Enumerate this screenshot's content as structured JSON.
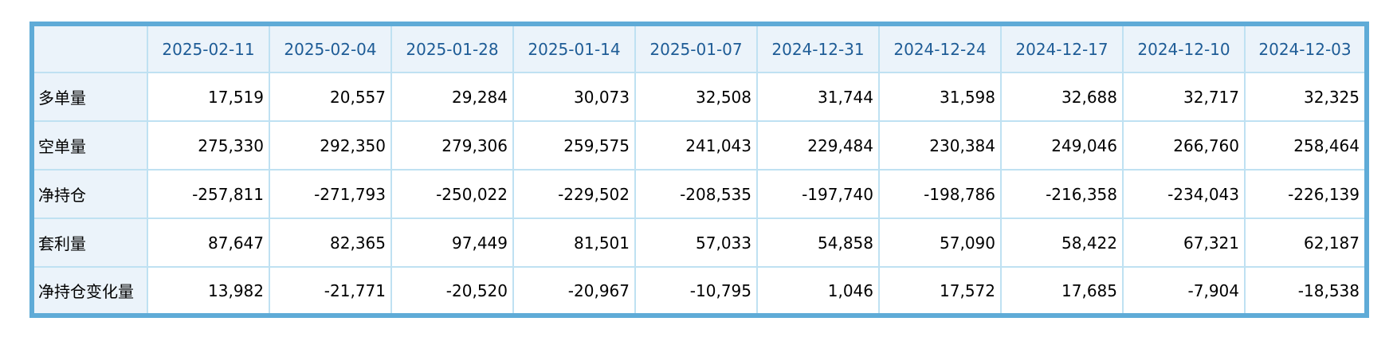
{
  "colors": {
    "outer_border": "#5FABD7",
    "grid_line": "#BFE1F2",
    "header_bg": "#EBF3FA",
    "label_bg": "#EBF3FA",
    "header_text": "#1E5C96",
    "body_text": "#000000",
    "page_bg": "#FFFFFF"
  },
  "chart_data": {
    "type": "table",
    "corner_label": "",
    "columns": [
      "2025-02-11",
      "2025-02-04",
      "2025-01-28",
      "2025-01-14",
      "2025-01-07",
      "2024-12-31",
      "2024-12-24",
      "2024-12-17",
      "2024-12-10",
      "2024-12-03"
    ],
    "rows": [
      {
        "label": "多单量",
        "values": [
          "17,519",
          "20,557",
          "29,284",
          "30,073",
          "32,508",
          "31,744",
          "31,598",
          "32,688",
          "32,717",
          "32,325"
        ]
      },
      {
        "label": "空单量",
        "values": [
          "275,330",
          "292,350",
          "279,306",
          "259,575",
          "241,043",
          "229,484",
          "230,384",
          "249,046",
          "266,760",
          "258,464"
        ]
      },
      {
        "label": "净持仓",
        "values": [
          "-257,811",
          "-271,793",
          "-250,022",
          "-229,502",
          "-208,535",
          "-197,740",
          "-198,786",
          "-216,358",
          "-234,043",
          "-226,139"
        ]
      },
      {
        "label": "套利量",
        "values": [
          "87,647",
          "82,365",
          "97,449",
          "81,501",
          "57,033",
          "54,858",
          "57,090",
          "58,422",
          "67,321",
          "62,187"
        ]
      },
      {
        "label": "净持仓变化量",
        "values": [
          "13,982",
          "-21,771",
          "-20,520",
          "-20,967",
          "-10,795",
          "1,046",
          "17,572",
          "17,685",
          "-7,904",
          "-18,538"
        ]
      }
    ]
  }
}
